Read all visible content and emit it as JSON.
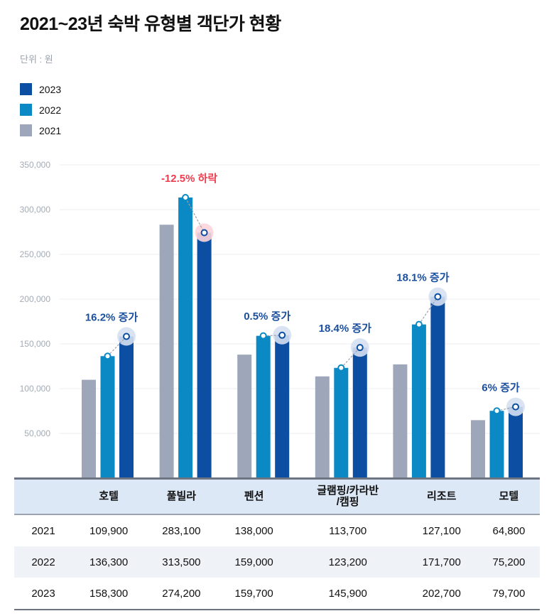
{
  "title": "2021~23년 숙박 유형별 객단가 현황",
  "unit_label": "단위 : 원",
  "colors": {
    "2021": "#9ea7ba",
    "2022": "#0a89c4",
    "2023": "#0c4ea2",
    "increase_text": "#1a4f9e",
    "decrease_text": "#ef3d4f",
    "increase_halo": "#d5e0f1",
    "decrease_halo": "#fcd5da",
    "grid": "#eceef2",
    "axis_text": "#a3abb6"
  },
  "legend": [
    {
      "label": "2023",
      "key": "2023"
    },
    {
      "label": "2022",
      "key": "2022"
    },
    {
      "label": "2021",
      "key": "2021"
    }
  ],
  "chart_data": {
    "type": "bar",
    "title": "2021~23년 숙박 유형별 객단가 현황",
    "xlabel": "",
    "ylabel": "단위 : 원",
    "ylim": [
      0,
      350000
    ],
    "yticks": [
      50000,
      100000,
      150000,
      200000,
      250000,
      300000,
      350000
    ],
    "ytick_labels": [
      "50,000",
      "100,000",
      "150,000",
      "200,000",
      "250,000",
      "300,000",
      "350,000"
    ],
    "grid": true,
    "legend_position": "top-left",
    "categories": [
      "호텔",
      "풀빌라",
      "펜션",
      "글램핑/카라반/캠핑",
      "리조트",
      "모텔"
    ],
    "series": [
      {
        "name": "2021",
        "values": [
          109900,
          283100,
          138000,
          113700,
          127100,
          64800
        ]
      },
      {
        "name": "2022",
        "values": [
          136300,
          313500,
          159000,
          123200,
          171700,
          75200
        ]
      },
      {
        "name": "2023",
        "values": [
          158300,
          274200,
          159700,
          145900,
          202700,
          79700
        ]
      }
    ],
    "annotations": [
      {
        "category": "호텔",
        "text": "16.2% 증가",
        "direction": "up"
      },
      {
        "category": "풀빌라",
        "text": "-12.5% 하락",
        "direction": "down"
      },
      {
        "category": "펜션",
        "text": "0.5% 증가",
        "direction": "up"
      },
      {
        "category": "글램핑/카라반/캠핑",
        "text": "18.4% 증가",
        "direction": "up"
      },
      {
        "category": "리조트",
        "text": "18.1% 증가",
        "direction": "up"
      },
      {
        "category": "모텔",
        "text": "6% 증가",
        "direction": "up"
      }
    ]
  },
  "table": {
    "headers": [
      "",
      "호텔",
      "풀빌라",
      "펜션",
      "글램핑/카라반\n/캠핑",
      "리조트",
      "모텔"
    ],
    "rows": [
      {
        "year": "2021",
        "cells": [
          "109,900",
          "283,100",
          "138,000",
          "113,700",
          "127,100",
          "64,800"
        ]
      },
      {
        "year": "2022",
        "cells": [
          "136,300",
          "313,500",
          "159,000",
          "123,200",
          "171,700",
          "75,200"
        ]
      },
      {
        "year": "2023",
        "cells": [
          "158,300",
          "274,200",
          "159,700",
          "145,900",
          "202,700",
          "79,700"
        ]
      }
    ]
  }
}
